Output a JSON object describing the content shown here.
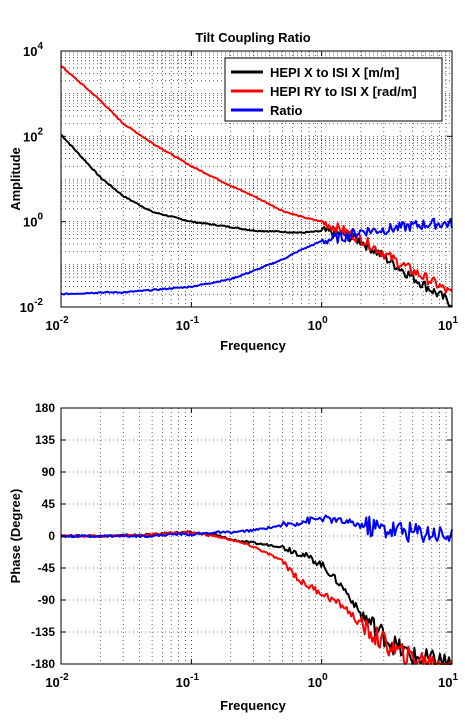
{
  "chart_data": [
    {
      "type": "line",
      "title": "Tilt Coupling Ratio",
      "xlabel": "Frequency",
      "ylabel": "Amplitude",
      "xscale": "log",
      "yscale": "log",
      "xlim": [
        0.01,
        10
      ],
      "ylim": [
        0.01,
        10000
      ],
      "x_ticks": [
        {
          "value": 0.01,
          "base": "10",
          "exp": "-2"
        },
        {
          "value": 0.1,
          "base": "10",
          "exp": "-1"
        },
        {
          "value": 1,
          "base": "10",
          "exp": "0"
        },
        {
          "value": 10,
          "base": "10",
          "exp": "1"
        }
      ],
      "y_ticks": [
        {
          "value": 0.01,
          "base": "10",
          "exp": "-2"
        },
        {
          "value": 1,
          "base": "10",
          "exp": "0"
        },
        {
          "value": 100,
          "base": "10",
          "exp": "2"
        },
        {
          "value": 10000,
          "base": "10",
          "exp": "4"
        }
      ],
      "grid": true,
      "legend_position": "top-right",
      "series": [
        {
          "name": "HEPI X to ISI X [m/m]",
          "color": "#000000",
          "x": [
            0.01,
            0.02,
            0.03,
            0.05,
            0.1,
            0.2,
            0.3,
            0.5,
            0.7,
            1,
            1.5,
            2,
            3,
            5,
            7,
            10
          ],
          "y": [
            110,
            11,
            4,
            1.7,
            1.0,
            0.75,
            0.62,
            0.58,
            0.55,
            0.6,
            0.5,
            0.35,
            0.15,
            0.05,
            0.025,
            0.012
          ]
        },
        {
          "name": "HEPI RY to ISI X [rad/m]",
          "color": "#ff0000",
          "x": [
            0.01,
            0.02,
            0.03,
            0.05,
            0.1,
            0.2,
            0.3,
            0.5,
            0.7,
            1,
            1.5,
            2,
            3,
            5,
            7,
            10
          ],
          "y": [
            4500,
            700,
            200,
            70,
            20,
            7,
            4,
            1.8,
            1.3,
            1.0,
            0.6,
            0.4,
            0.18,
            0.07,
            0.04,
            0.02
          ]
        },
        {
          "name": "Ratio",
          "color": "#0000ff",
          "x": [
            0.01,
            0.02,
            0.03,
            0.05,
            0.1,
            0.2,
            0.3,
            0.5,
            0.7,
            1,
            1.5,
            2,
            3,
            5,
            7,
            10
          ],
          "y": [
            0.02,
            0.022,
            0.022,
            0.025,
            0.03,
            0.045,
            0.07,
            0.13,
            0.22,
            0.35,
            0.45,
            0.6,
            0.65,
            0.8,
            0.9,
            0.9
          ]
        }
      ]
    },
    {
      "type": "line",
      "xlabel": "Frequency",
      "ylabel": "Phase (Degree)",
      "xscale": "log",
      "yscale": "linear",
      "xlim": [
        0.01,
        10
      ],
      "ylim": [
        -180,
        180
      ],
      "x_ticks": [
        {
          "value": 0.01,
          "base": "10",
          "exp": "-2"
        },
        {
          "value": 0.1,
          "base": "10",
          "exp": "-1"
        },
        {
          "value": 1,
          "base": "10",
          "exp": "0"
        },
        {
          "value": 10,
          "base": "10",
          "exp": "1"
        }
      ],
      "y_ticks": [
        {
          "value": 180,
          "label": "180"
        },
        {
          "value": 135,
          "label": "135"
        },
        {
          "value": 90,
          "label": "90"
        },
        {
          "value": 45,
          "label": "45"
        },
        {
          "value": 0,
          "label": "0"
        },
        {
          "value": -45,
          "label": "-45"
        },
        {
          "value": -90,
          "label": "-90"
        },
        {
          "value": -135,
          "label": "-135"
        },
        {
          "value": -180,
          "label": "-180"
        }
      ],
      "grid": true,
      "series": [
        {
          "name": "HEPI X to ISI X [m/m]",
          "color": "#000000",
          "x": [
            0.01,
            0.02,
            0.05,
            0.08,
            0.1,
            0.15,
            0.2,
            0.3,
            0.5,
            0.7,
            1,
            1.5,
            2,
            3,
            4,
            5,
            7,
            10
          ],
          "y": [
            0,
            0,
            2,
            5,
            5,
            2,
            -5,
            -10,
            -15,
            -25,
            -40,
            -75,
            -110,
            -140,
            -160,
            -170,
            -175,
            -178
          ]
        },
        {
          "name": "HEPI RY to ISI X [rad/m]",
          "color": "#ff0000",
          "x": [
            0.01,
            0.02,
            0.05,
            0.08,
            0.1,
            0.15,
            0.2,
            0.3,
            0.5,
            0.7,
            1,
            1.5,
            2,
            3,
            4,
            5,
            7,
            10
          ],
          "y": [
            0,
            0,
            2,
            5,
            5,
            0,
            -5,
            -15,
            -35,
            -65,
            -80,
            -100,
            -125,
            -150,
            -165,
            -172,
            -178,
            -180
          ]
        },
        {
          "name": "Ratio",
          "color": "#0000ff",
          "x": [
            0.01,
            0.02,
            0.05,
            0.08,
            0.1,
            0.15,
            0.2,
            0.3,
            0.5,
            0.7,
            1,
            1.5,
            2,
            3,
            4,
            5,
            7,
            10
          ],
          "y": [
            0,
            0,
            0,
            3,
            2,
            5,
            5,
            8,
            15,
            20,
            25,
            20,
            15,
            10,
            8,
            5,
            5,
            0
          ]
        }
      ]
    }
  ]
}
